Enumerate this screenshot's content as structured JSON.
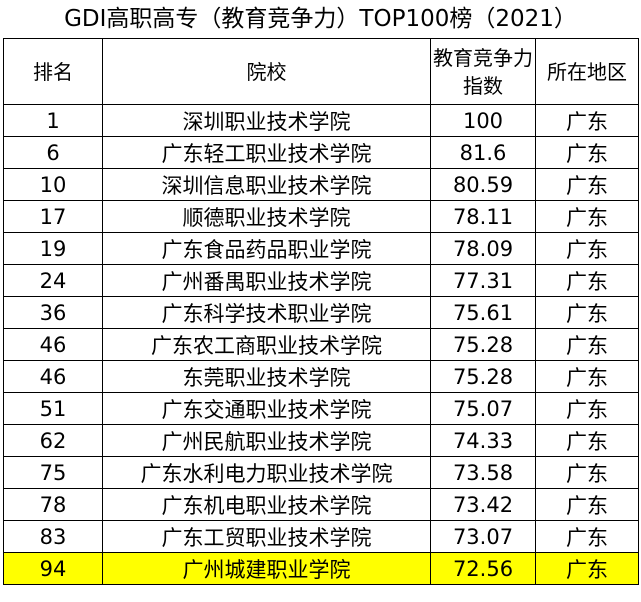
{
  "title": "GDI高职高专（教育竞争力）TOP100榜（2021）",
  "headers": {
    "rank": "排名",
    "school": "院校",
    "index": "教育竞争力指数",
    "region": "所在地区"
  },
  "highlight_color": "#ffff00",
  "rows": [
    {
      "rank": "1",
      "school": "深圳职业技术学院",
      "index": "100",
      "region": "广东"
    },
    {
      "rank": "6",
      "school": "广东轻工职业技术学院",
      "index": "81.6",
      "region": "广东"
    },
    {
      "rank": "10",
      "school": "深圳信息职业技术学院",
      "index": "80.59",
      "region": "广东"
    },
    {
      "rank": "17",
      "school": "顺德职业技术学院",
      "index": "78.11",
      "region": "广东"
    },
    {
      "rank": "19",
      "school": "广东食品药品职业学院",
      "index": "78.09",
      "region": "广东"
    },
    {
      "rank": "24",
      "school": "广州番禺职业技术学院",
      "index": "77.31",
      "region": "广东"
    },
    {
      "rank": "36",
      "school": "广东科学技术职业学院",
      "index": "75.61",
      "region": "广东"
    },
    {
      "rank": "46",
      "school": "广东农工商职业技术学院",
      "index": "75.28",
      "region": "广东"
    },
    {
      "rank": "46",
      "school": "东莞职业技术学院",
      "index": "75.28",
      "region": "广东"
    },
    {
      "rank": "51",
      "school": "广东交通职业技术学院",
      "index": "75.07",
      "region": "广东"
    },
    {
      "rank": "62",
      "school": "广州民航职业技术学院",
      "index": "74.33",
      "region": "广东"
    },
    {
      "rank": "75",
      "school": "广东水利电力职业技术学院",
      "index": "73.58",
      "region": "广东"
    },
    {
      "rank": "78",
      "school": "广东机电职业技术学院",
      "index": "73.42",
      "region": "广东"
    },
    {
      "rank": "83",
      "school": "广东工贸职业技术学院",
      "index": "73.07",
      "region": "广东"
    },
    {
      "rank": "94",
      "school": "广州城建职业学院",
      "index": "72.56",
      "region": "广东",
      "highlight": true
    }
  ]
}
